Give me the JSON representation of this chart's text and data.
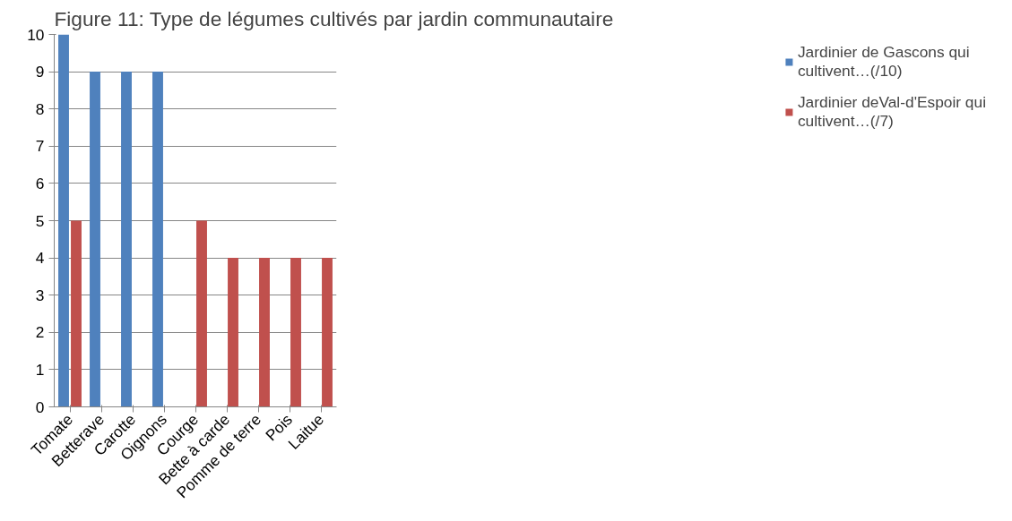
{
  "chart_data": {
    "type": "bar",
    "title": "Figure 11: Type de légumes cultivés par jardin communautaire",
    "categories": [
      "Tomate",
      "Betterave",
      "Carotte",
      "Oignons",
      "Courge",
      "Bette à carde",
      "Pomme de terre",
      "Pois",
      "Laitue"
    ],
    "series": [
      {
        "name": "Jardinier de Gascons qui cultivent…(/10)",
        "color": "#4f81bd",
        "values": [
          10,
          9,
          9,
          9,
          null,
          null,
          null,
          null,
          null
        ]
      },
      {
        "name": "Jardinier deVal-d'Espoir qui cultivent…(/7)",
        "color": "#c0504d",
        "values": [
          5,
          null,
          null,
          null,
          5,
          4,
          4,
          4,
          4
        ]
      }
    ],
    "ylim": [
      0,
      10
    ],
    "yticks": [
      0,
      1,
      2,
      3,
      4,
      5,
      6,
      7,
      8,
      9,
      10
    ],
    "grid": "y",
    "legend": "right"
  }
}
